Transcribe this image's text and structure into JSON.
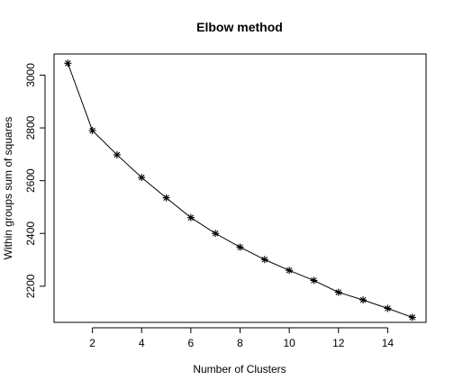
{
  "chart_data": {
    "type": "line",
    "title": "Elbow method",
    "xlabel": "Number of Clusters",
    "ylabel": "Within groups sum of squares",
    "x": [
      1,
      2,
      3,
      4,
      5,
      6,
      7,
      8,
      9,
      10,
      11,
      12,
      13,
      14,
      15
    ],
    "series": [
      {
        "values": [
          3045,
          2790,
          2698,
          2612,
          2535,
          2460,
          2400,
          2348,
          2301,
          2260,
          2222,
          2177,
          2148,
          2116,
          2082
        ]
      }
    ],
    "xlim": [
      0.44,
      15.56
    ],
    "ylim": [
      2063,
      3080
    ],
    "xticks": [
      2,
      4,
      6,
      8,
      10,
      12,
      14
    ],
    "xtick_labels": [
      "2",
      "4",
      "6",
      "8",
      "10",
      "12",
      "14"
    ],
    "yticks": [
      2200,
      2400,
      2600,
      2800,
      3000
    ],
    "ytick_labels": [
      "2200",
      "2400",
      "2600",
      "2800",
      "3000"
    ],
    "marker": "asterisk",
    "line_color": "#000000",
    "grid": false,
    "legend": "none"
  }
}
